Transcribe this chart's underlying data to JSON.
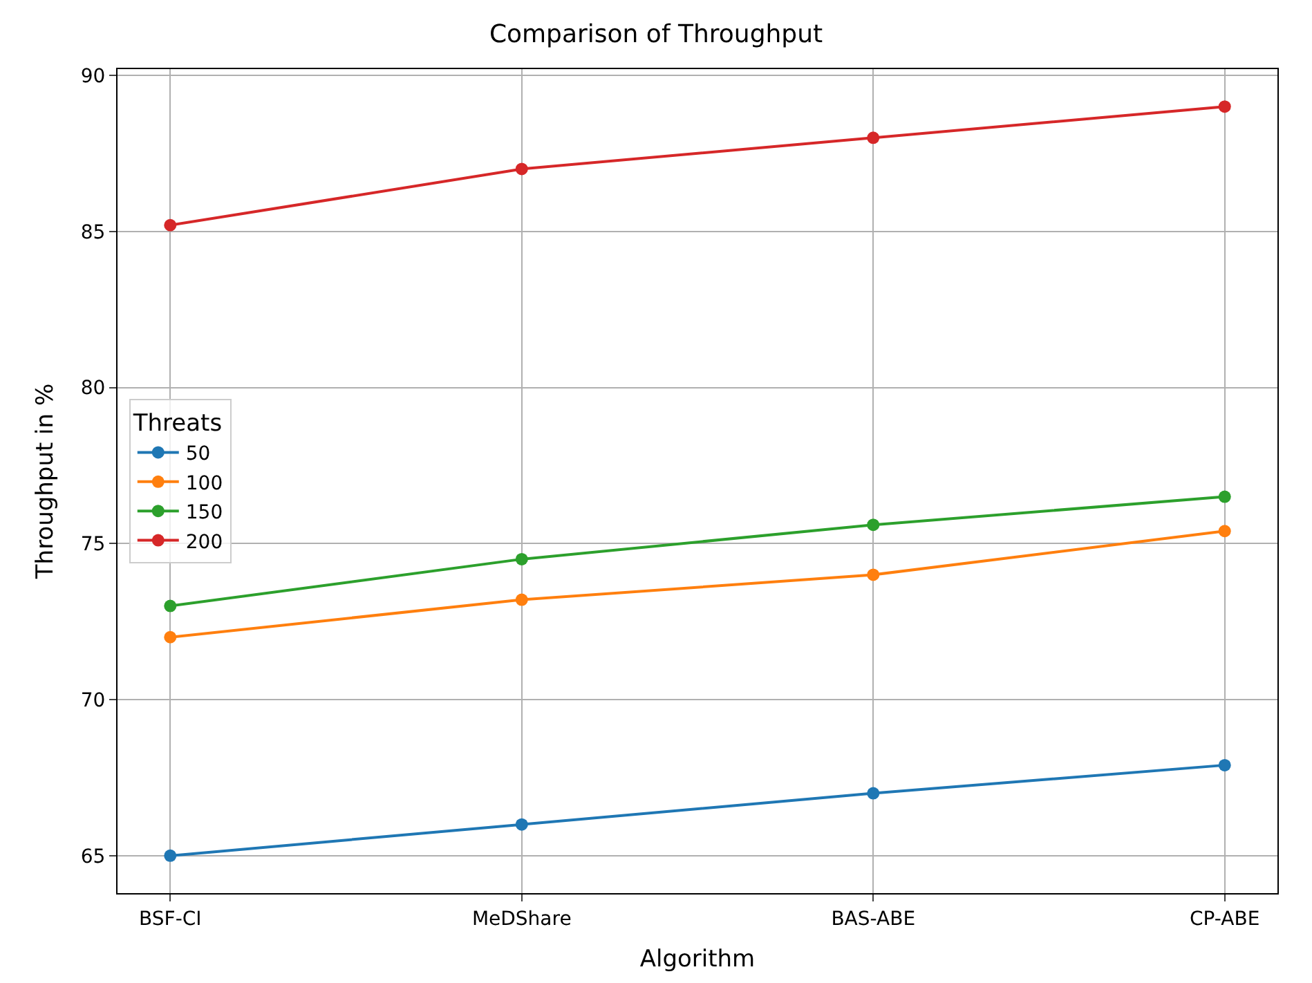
{
  "chart_data": {
    "type": "line",
    "title": "Comparison of Throughput",
    "xlabel": "Algorithm",
    "ylabel": "Throughput in %",
    "legend_title": "Threats",
    "categories": [
      "BSF-CI",
      "MeDShare",
      "BAS-ABE",
      "CP-ABE"
    ],
    "series": [
      {
        "name": "50",
        "color": "#1f77b4",
        "values": [
          65,
          66,
          67,
          67.9
        ]
      },
      {
        "name": "100",
        "color": "#ff7f0e",
        "values": [
          72,
          73.2,
          74,
          75.4
        ]
      },
      {
        "name": "150",
        "color": "#2ca02c",
        "values": [
          73,
          74.5,
          75.6,
          76.5
        ]
      },
      {
        "name": "200",
        "color": "#d62728",
        "values": [
          85.2,
          87,
          88,
          89
        ]
      }
    ],
    "ylim": [
      63.8,
      90.2
    ],
    "yticks": [
      65,
      70,
      75,
      80,
      85,
      90
    ],
    "grid": true,
    "legend": "left",
    "marker": "circle",
    "line_style": "solid"
  }
}
